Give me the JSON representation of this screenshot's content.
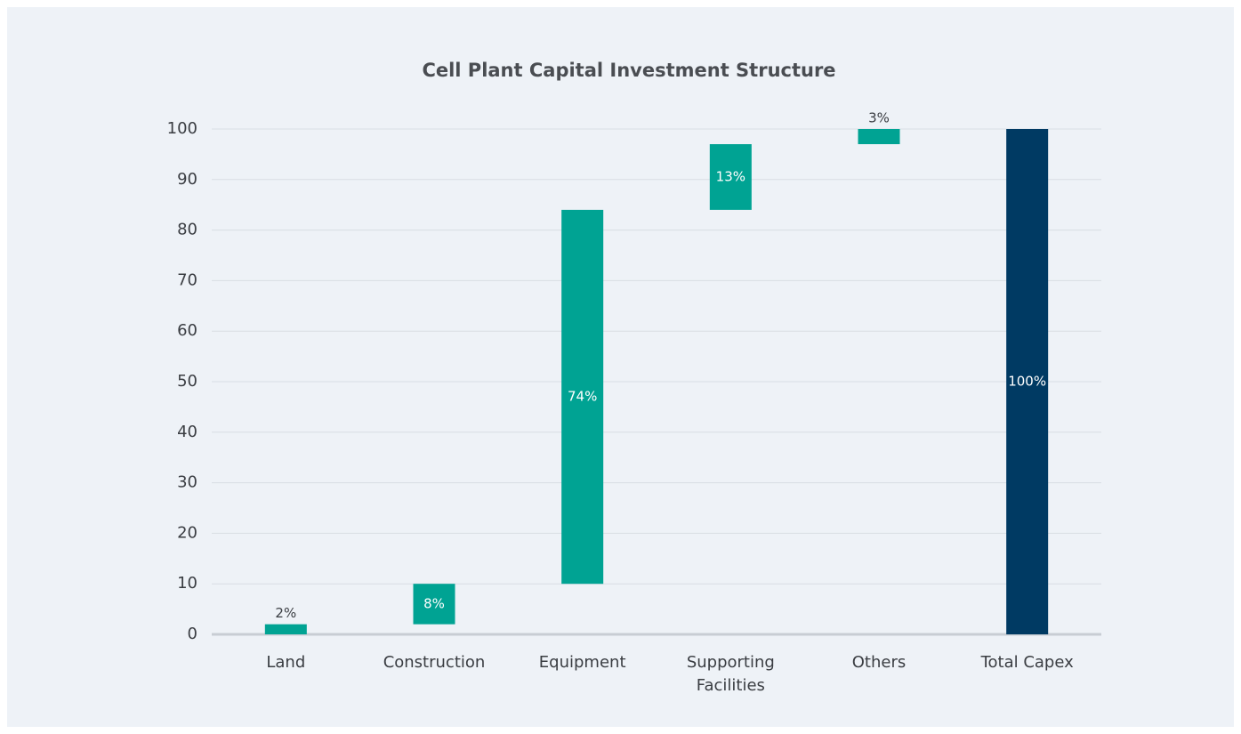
{
  "chart_data": {
    "type": "waterfall",
    "title": "Cell Plant Capital Investment Structure",
    "categories": [
      "Land",
      "Construction",
      "Equipment",
      "Supporting Facilities",
      "Others",
      "Total Capex"
    ],
    "values": [
      2,
      8,
      74,
      13,
      3,
      100
    ],
    "value_labels": [
      "2%",
      "8%",
      "74%",
      "13%",
      "3%",
      "100%"
    ],
    "measure": [
      "relative",
      "relative",
      "relative",
      "relative",
      "relative",
      "total"
    ],
    "colors": [
      "#00a393",
      "#00a393",
      "#00a393",
      "#00a393",
      "#00a393",
      "#003a63"
    ],
    "ylim": [
      0,
      100
    ],
    "yticks": [
      0,
      10,
      20,
      30,
      40,
      50,
      60,
      70,
      80,
      90,
      100
    ],
    "grid": true
  }
}
